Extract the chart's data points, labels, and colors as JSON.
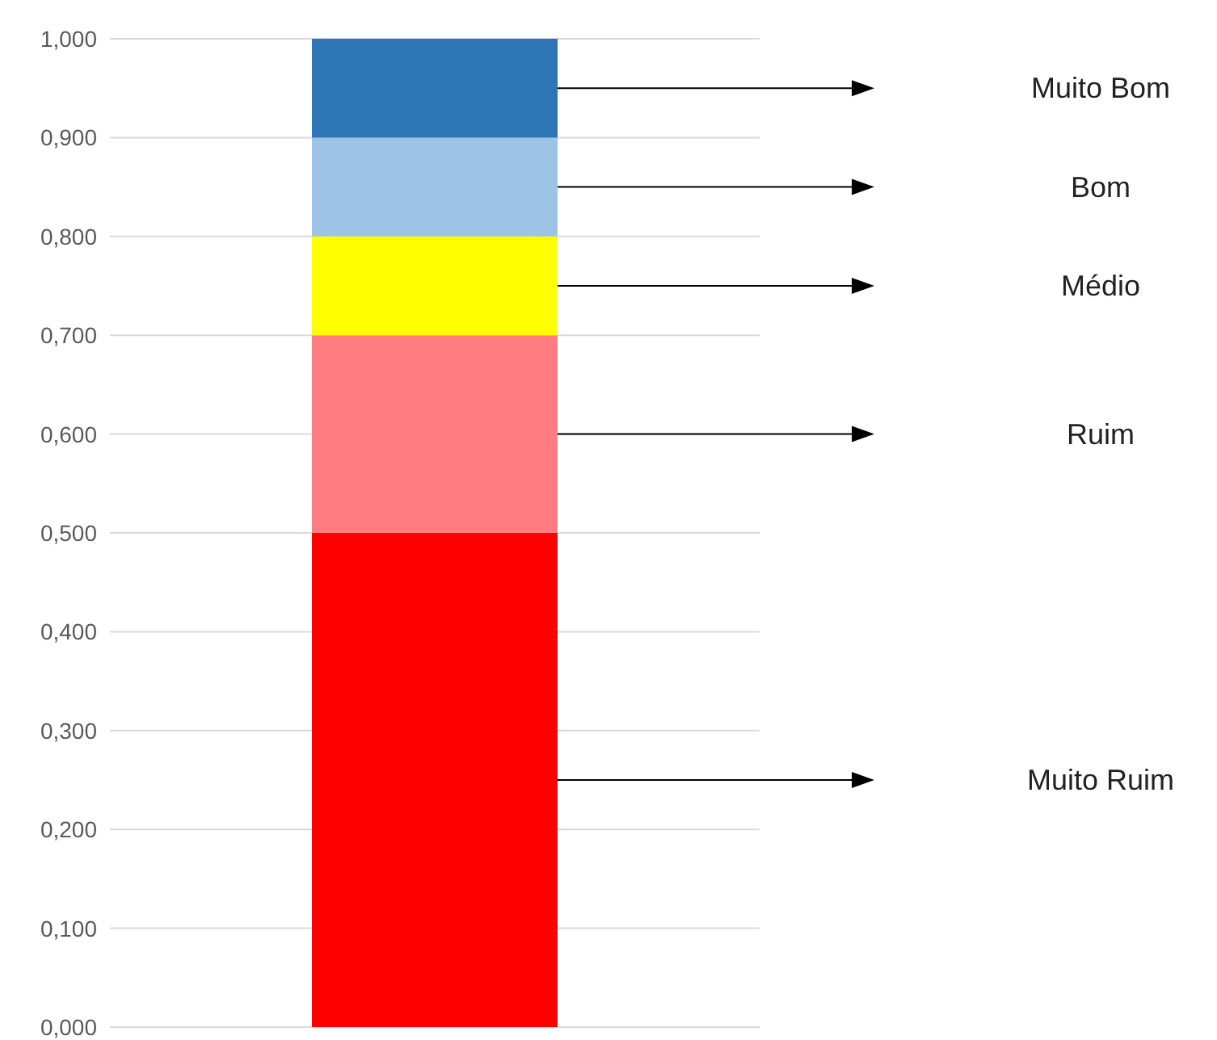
{
  "chart_data": {
    "type": "bar",
    "stacked": true,
    "categories": [
      null
    ],
    "series": [
      {
        "name": "Muito Ruim",
        "color": "#ff0000",
        "values": [
          0.5
        ]
      },
      {
        "name": "Ruim",
        "color": "#ff7c80",
        "values": [
          0.2
        ]
      },
      {
        "name": "Médio",
        "color": "#ffff00",
        "values": [
          0.1
        ]
      },
      {
        "name": "Bom",
        "color": "#9dc3e6",
        "values": [
          0.1
        ]
      },
      {
        "name": "Muito Bom",
        "color": "#2e75b6",
        "values": [
          0.1
        ]
      }
    ],
    "ylim": [
      0,
      1
    ],
    "yticks": [
      {
        "value": 0,
        "label": "0,000"
      },
      {
        "value": 0.1,
        "label": "0,100"
      },
      {
        "value": 0.2,
        "label": "0,200"
      },
      {
        "value": 0.3,
        "label": "0,300"
      },
      {
        "value": 0.4,
        "label": "0,400"
      },
      {
        "value": 0.5,
        "label": "0,500"
      },
      {
        "value": 0.6,
        "label": "0,600"
      },
      {
        "value": 0.7,
        "label": "0,700"
      },
      {
        "value": 0.8,
        "label": "0,800"
      },
      {
        "value": 0.9,
        "label": "0,900"
      },
      {
        "value": 1,
        "label": "1,000"
      }
    ],
    "grid": "y",
    "legend": false
  }
}
